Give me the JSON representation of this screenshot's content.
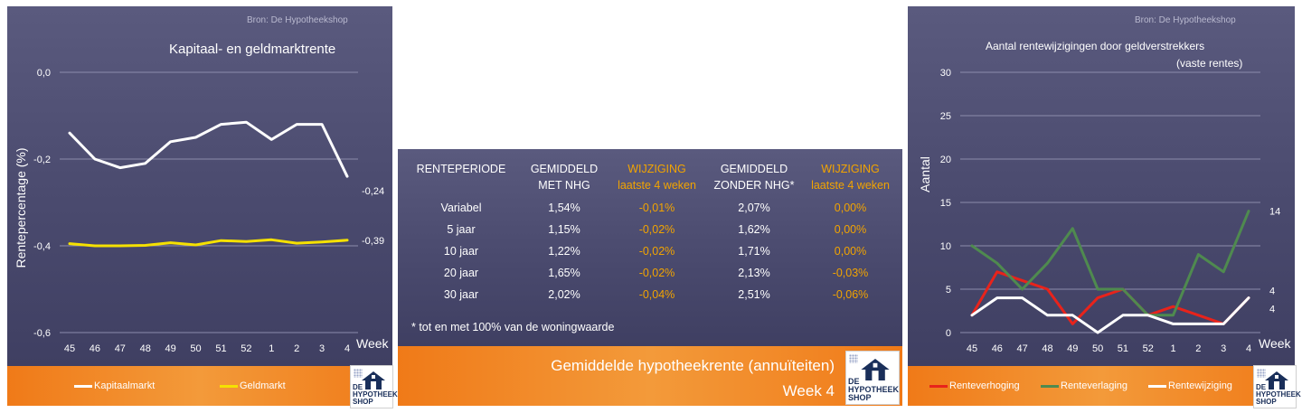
{
  "left": {
    "source": "Bron: De Hypotheekshop",
    "title": "Kapitaal- en geldmarktrente",
    "legend": [
      {
        "label": "Kapitaalmarkt",
        "color": "#ffffff"
      },
      {
        "label": "Geldmarkt",
        "color": "#f5e100"
      }
    ]
  },
  "middle": {
    "headers": [
      [
        "RENTEPERIODE",
        ""
      ],
      [
        "GEMIDDELD",
        "MET NHG"
      ],
      [
        "WIJZIGING",
        "laatste 4 weken"
      ],
      [
        "GEMIDDELD",
        "ZONDER NHG*"
      ],
      [
        "WIJZIGING",
        "laatste 4 weken"
      ]
    ],
    "rows": [
      [
        "Variabel",
        "1,54%",
        "-0,01%",
        "2,07%",
        "0,00%"
      ],
      [
        "5 jaar",
        "1,15%",
        "-0,02%",
        "1,62%",
        "0,00%"
      ],
      [
        "10 jaar",
        "1,22%",
        "-0,02%",
        "1,71%",
        "0,00%"
      ],
      [
        "20 jaar",
        "1,65%",
        "-0,02%",
        "2,13%",
        "-0,03%"
      ],
      [
        "30 jaar",
        "2,02%",
        "-0,04%",
        "2,51%",
        "-0,06%"
      ]
    ],
    "note": "* tot en met 100% van de woningwaarde",
    "footer_title": "Gemiddelde hypotheekrente (annuïteiten)",
    "footer_week": "Week 4"
  },
  "right": {
    "source": "Bron: De Hypotheekshop",
    "title": "Aantal rentewijzigingen door geldverstrekkers",
    "subtitle": "(vaste rentes)",
    "legend": [
      {
        "label": "Renteverhoging",
        "color": "#e8231b"
      },
      {
        "label": "Renteverlaging",
        "color": "#4f8a4f"
      },
      {
        "label": "Rentewijziging",
        "color": "#ffffff"
      }
    ]
  },
  "logo": {
    "brand": "DE HYPOTHEEK SHOP"
  },
  "chart_data": [
    {
      "type": "line",
      "title": "Kapitaal- en geldmarktrente",
      "xlabel": "Week",
      "ylabel": "Rentepercentage (%)",
      "categories": [
        "45",
        "46",
        "47",
        "48",
        "49",
        "50",
        "51",
        "52",
        "1",
        "2",
        "3",
        "4"
      ],
      "ylim": [
        -0.6,
        0.0
      ],
      "yticks": [
        0.0,
        -0.2,
        -0.4,
        -0.6
      ],
      "ytick_labels": [
        "0,0",
        "-0,2",
        "-0,4",
        "-0,6"
      ],
      "grid": true,
      "legend_position": "bottom",
      "series": [
        {
          "name": "Kapitaalmarkt",
          "color": "#ffffff",
          "values": [
            -0.14,
            -0.2,
            -0.22,
            -0.21,
            -0.16,
            -0.15,
            -0.12,
            -0.115,
            -0.155,
            -0.12,
            -0.12,
            -0.24
          ],
          "end_label": "-0,24"
        },
        {
          "name": "Geldmarkt",
          "color": "#f5e100",
          "values": [
            -0.395,
            -0.4,
            -0.4,
            -0.399,
            -0.393,
            -0.398,
            -0.388,
            -0.39,
            -0.386,
            -0.394,
            -0.391,
            -0.387
          ],
          "end_label": "-0,39"
        }
      ]
    },
    {
      "type": "line",
      "title": "Aantal rentewijzigingen door geldverstrekkers",
      "subtitle": "(vaste rentes)",
      "xlabel": "Week",
      "ylabel": "Aantal",
      "categories": [
        "45",
        "46",
        "47",
        "48",
        "49",
        "50",
        "51",
        "52",
        "1",
        "2",
        "3",
        "4"
      ],
      "ylim": [
        0,
        30
      ],
      "yticks": [
        0,
        5,
        10,
        15,
        20,
        25,
        30
      ],
      "grid": true,
      "legend_position": "bottom",
      "series": [
        {
          "name": "Renteverhoging",
          "color": "#e8231b",
          "values": [
            2,
            7,
            6,
            5,
            1,
            4,
            5,
            2,
            3,
            2,
            1,
            4
          ]
        },
        {
          "name": "Renteverlaging",
          "color": "#4f8a4f",
          "values": [
            10,
            8,
            5,
            8,
            12,
            5,
            5,
            2,
            2,
            9,
            7,
            14
          ],
          "end_label": "14"
        },
        {
          "name": "Rentewijziging",
          "color": "#ffffff",
          "values": [
            2,
            4,
            4,
            2,
            2,
            0,
            2,
            2,
            1,
            1,
            1,
            4
          ],
          "end_label": "4"
        }
      ],
      "extra_labels": [
        "4"
      ]
    }
  ]
}
